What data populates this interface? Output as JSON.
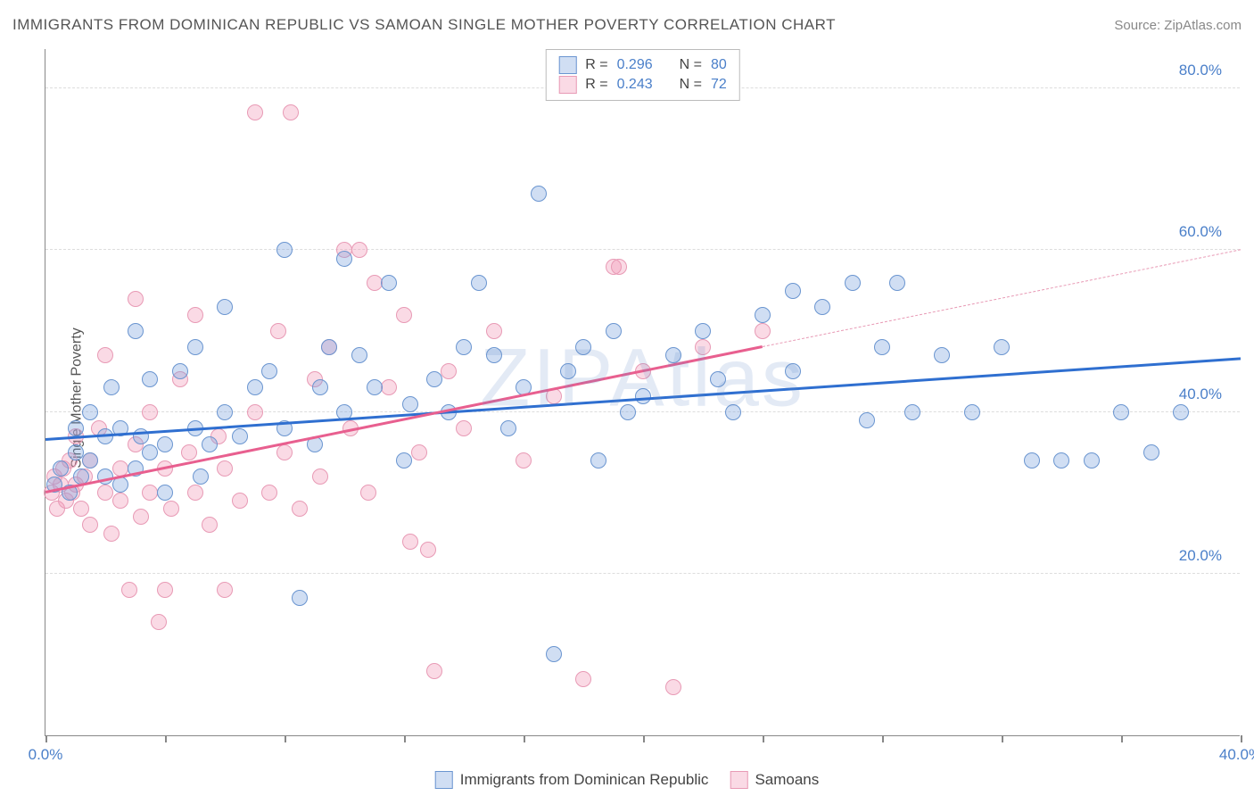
{
  "title": "IMMIGRANTS FROM DOMINICAN REPUBLIC VS SAMOAN SINGLE MOTHER POVERTY CORRELATION CHART",
  "source_label": "Source:",
  "source_name": "ZipAtlas.com",
  "watermark": "ZIPAtlas",
  "ylabel": "Single Mother Poverty",
  "chart": {
    "type": "scatter",
    "xlim": [
      0,
      40
    ],
    "ylim": [
      0,
      85
    ],
    "ytick_values": [
      20,
      40,
      60,
      80
    ],
    "ytick_labels": [
      "20.0%",
      "40.0%",
      "60.0%",
      "80.0%"
    ],
    "xtick_values": [
      0,
      4,
      8,
      12,
      16,
      20,
      24,
      28,
      32,
      36,
      40
    ],
    "xtick_labels_shown": {
      "0": "0.0%",
      "40": "40.0%"
    },
    "grid_color": "#dddddd",
    "axis_color": "#888888",
    "background_color": "#ffffff",
    "marker_radius": 9,
    "marker_border_width": 1.5,
    "series": [
      {
        "name": "Immigrants from Dominican Republic",
        "fill_color": "rgba(120, 160, 220, 0.35)",
        "border_color": "#6a95d0",
        "line_color": "#2f6fd0",
        "r_value": "0.296",
        "n_value": "80",
        "trend": {
          "x1": 0,
          "y1": 36.5,
          "x2": 40,
          "y2": 46.5,
          "dashed_from": null
        },
        "points": [
          [
            0.3,
            31
          ],
          [
            0.5,
            33
          ],
          [
            0.8,
            30
          ],
          [
            1.0,
            35
          ],
          [
            1.0,
            38
          ],
          [
            1.2,
            32
          ],
          [
            1.5,
            34
          ],
          [
            1.5,
            40
          ],
          [
            2.0,
            32
          ],
          [
            2.0,
            37
          ],
          [
            2.2,
            43
          ],
          [
            2.5,
            31
          ],
          [
            2.5,
            38
          ],
          [
            3.0,
            33
          ],
          [
            3.0,
            50
          ],
          [
            3.2,
            37
          ],
          [
            3.5,
            35
          ],
          [
            3.5,
            44
          ],
          [
            4.0,
            36
          ],
          [
            4.0,
            30
          ],
          [
            4.5,
            45
          ],
          [
            5.0,
            38
          ],
          [
            5.0,
            48
          ],
          [
            5.2,
            32
          ],
          [
            5.5,
            36
          ],
          [
            6.0,
            40
          ],
          [
            6.0,
            53
          ],
          [
            6.5,
            37
          ],
          [
            7.0,
            43
          ],
          [
            7.5,
            45
          ],
          [
            8.0,
            38
          ],
          [
            8.0,
            60
          ],
          [
            8.5,
            17
          ],
          [
            9.0,
            36
          ],
          [
            9.2,
            43
          ],
          [
            9.5,
            48
          ],
          [
            10.0,
            40
          ],
          [
            10.0,
            59
          ],
          [
            10.5,
            47
          ],
          [
            11.0,
            43
          ],
          [
            11.5,
            56
          ],
          [
            12.0,
            34
          ],
          [
            12.2,
            41
          ],
          [
            13.0,
            44
          ],
          [
            13.5,
            40
          ],
          [
            14.0,
            48
          ],
          [
            14.5,
            56
          ],
          [
            15.0,
            47
          ],
          [
            15.5,
            38
          ],
          [
            16.0,
            43
          ],
          [
            16.5,
            67
          ],
          [
            17.0,
            10
          ],
          [
            17.5,
            45
          ],
          [
            18.0,
            48
          ],
          [
            18.5,
            34
          ],
          [
            19.0,
            50
          ],
          [
            19.5,
            40
          ],
          [
            20.0,
            42
          ],
          [
            21.0,
            47
          ],
          [
            22.0,
            50
          ],
          [
            22.5,
            44
          ],
          [
            23.0,
            40
          ],
          [
            24.0,
            52
          ],
          [
            25.0,
            45
          ],
          [
            25.0,
            55
          ],
          [
            26.0,
            53
          ],
          [
            27.0,
            56
          ],
          [
            27.5,
            39
          ],
          [
            28.0,
            48
          ],
          [
            28.5,
            56
          ],
          [
            29.0,
            40
          ],
          [
            30.0,
            47
          ],
          [
            31.0,
            40
          ],
          [
            32.0,
            48
          ],
          [
            33.0,
            34
          ],
          [
            34.0,
            34
          ],
          [
            35.0,
            34
          ],
          [
            36.0,
            40
          ],
          [
            37.0,
            35
          ],
          [
            38.0,
            40
          ]
        ]
      },
      {
        "name": "Samoans",
        "fill_color": "rgba(240, 150, 180, 0.35)",
        "border_color": "#e89ab5",
        "line_color": "#e85f8f",
        "r_value": "0.243",
        "n_value": "72",
        "trend": {
          "x1": 0,
          "y1": 30,
          "x2": 40,
          "y2": 60,
          "dashed_from": 24
        },
        "points": [
          [
            0.2,
            30
          ],
          [
            0.3,
            32
          ],
          [
            0.4,
            28
          ],
          [
            0.5,
            31
          ],
          [
            0.6,
            33
          ],
          [
            0.7,
            29
          ],
          [
            0.8,
            34
          ],
          [
            0.9,
            30
          ],
          [
            1.0,
            31
          ],
          [
            1.0,
            37
          ],
          [
            1.2,
            28
          ],
          [
            1.3,
            32
          ],
          [
            1.5,
            26
          ],
          [
            1.5,
            34
          ],
          [
            1.8,
            38
          ],
          [
            2.0,
            30
          ],
          [
            2.0,
            47
          ],
          [
            2.2,
            25
          ],
          [
            2.5,
            29
          ],
          [
            2.5,
            33
          ],
          [
            2.8,
            18
          ],
          [
            3.0,
            36
          ],
          [
            3.0,
            54
          ],
          [
            3.2,
            27
          ],
          [
            3.5,
            30
          ],
          [
            3.5,
            40
          ],
          [
            3.8,
            14
          ],
          [
            4.0,
            33
          ],
          [
            4.0,
            18
          ],
          [
            4.2,
            28
          ],
          [
            4.5,
            44
          ],
          [
            4.8,
            35
          ],
          [
            5.0,
            30
          ],
          [
            5.0,
            52
          ],
          [
            5.5,
            26
          ],
          [
            5.8,
            37
          ],
          [
            6.0,
            33
          ],
          [
            6.0,
            18
          ],
          [
            6.5,
            29
          ],
          [
            7.0,
            40
          ],
          [
            7.0,
            77
          ],
          [
            7.5,
            30
          ],
          [
            7.8,
            50
          ],
          [
            8.0,
            35
          ],
          [
            8.2,
            77
          ],
          [
            8.5,
            28
          ],
          [
            9.0,
            44
          ],
          [
            9.2,
            32
          ],
          [
            9.5,
            48
          ],
          [
            10.0,
            60
          ],
          [
            10.2,
            38
          ],
          [
            10.5,
            60
          ],
          [
            10.8,
            30
          ],
          [
            11.0,
            56
          ],
          [
            11.5,
            43
          ],
          [
            12.0,
            52
          ],
          [
            12.2,
            24
          ],
          [
            12.5,
            35
          ],
          [
            12.8,
            23
          ],
          [
            13.0,
            8
          ],
          [
            13.5,
            45
          ],
          [
            14.0,
            38
          ],
          [
            15.0,
            50
          ],
          [
            16.0,
            34
          ],
          [
            17.0,
            42
          ],
          [
            18.0,
            7
          ],
          [
            19.0,
            58
          ],
          [
            19.2,
            58
          ],
          [
            20.0,
            45
          ],
          [
            21.0,
            6
          ],
          [
            22.0,
            48
          ],
          [
            24.0,
            50
          ]
        ]
      }
    ]
  },
  "legend_box": {
    "r_label": "R =",
    "n_label": "N ="
  },
  "bottom_legend": {
    "items": [
      "Immigrants from Dominican Republic",
      "Samoans"
    ]
  },
  "colors": {
    "title_color": "#555555",
    "source_color": "#888888",
    "tick_label_color": "#4a7fc9"
  }
}
